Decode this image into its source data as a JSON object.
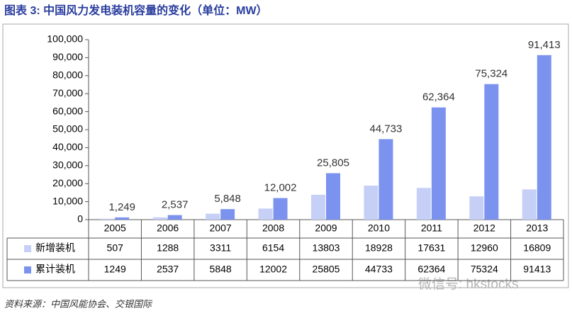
{
  "chart_data": {
    "type": "bar",
    "title": "图表 3: 中国风力发电装机容量的变化（单位：MW）",
    "source": "资料来源：中国风能协会、交银国际",
    "watermark": "微信号: hkstocks",
    "categories": [
      "2005",
      "2006",
      "2007",
      "2008",
      "2009",
      "2010",
      "2011",
      "2012",
      "2013"
    ],
    "series": [
      {
        "name": "新增装机",
        "color": "#c6d0f6",
        "values": [
          507,
          1288,
          3311,
          6154,
          13803,
          18928,
          17631,
          12960,
          16809
        ]
      },
      {
        "name": "累计装机",
        "color": "#7b93ef",
        "values": [
          1249,
          2537,
          5848,
          12002,
          25805,
          44733,
          62364,
          75324,
          91413
        ],
        "value_labels": [
          "1,249",
          "2,537",
          "5,848",
          "12,002",
          "25,805",
          "44,733",
          "62,364",
          "75,324",
          "91,413"
        ]
      }
    ],
    "ylim": [
      0,
      100000
    ],
    "yticks": [
      0,
      {
        "value": 10000,
        "label": "10,000"
      },
      {
        "value": 20000,
        "label": "20,000"
      },
      {
        "value": 30000,
        "label": "30,000"
      },
      {
        "value": 40000,
        "label": "40,000"
      },
      {
        "value": 50000,
        "label": "50,000"
      },
      {
        "value": 60000,
        "label": "60,000"
      },
      {
        "value": 70000,
        "label": "70,000"
      },
      {
        "value": 80000,
        "label": "80,000"
      },
      {
        "value": 90000,
        "label": "90,000"
      },
      {
        "value": 100000,
        "label": "100,000"
      }
    ]
  }
}
